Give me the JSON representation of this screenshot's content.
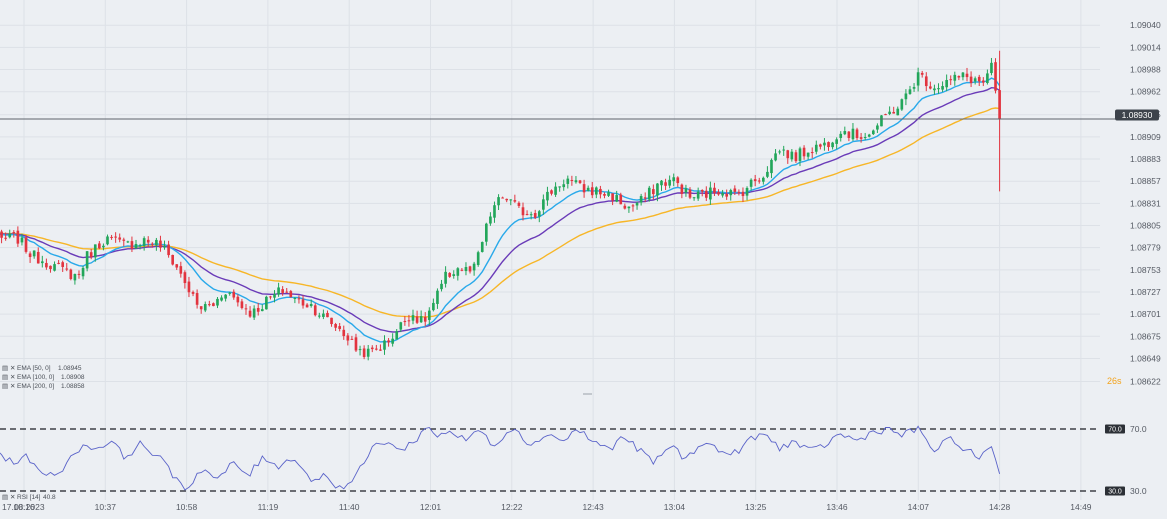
{
  "colors": {
    "background": "#eceff3",
    "grid": "#dde1e7",
    "bull": "#22a65a",
    "bear": "#e2343f",
    "ema50": "#29a9ea",
    "ema100": "#6a3bb8",
    "ema200": "#f7b627",
    "rsi": "#5a63c9",
    "price_line": "#5e636b",
    "price_badge": "#3d434b"
  },
  "chart_data": [
    {
      "type": "candlestick",
      "instrument_price": "1.08930",
      "y_ticks": [
        "1.09040",
        "1.09014",
        "1.08988",
        "1.08962",
        "1.08935",
        "1.08909",
        "1.08883",
        "1.08857",
        "1.08831",
        "1.08805",
        "1.08779",
        "1.08753",
        "1.08727",
        "1.08701",
        "1.08675",
        "1.08649",
        "1.08622"
      ],
      "ylim": [
        1.08612,
        1.09052
      ],
      "x_start_label": "17.08.2023",
      "x_ticks": [
        "10:16",
        "10:37",
        "10:58",
        "11:19",
        "11:40",
        "12:01",
        "12:22",
        "12:43",
        "13:04",
        "13:25",
        "13:46",
        "14:07",
        "14:28",
        "14:49"
      ],
      "countdown": "26s",
      "legend": [
        {
          "label": "EMA [50, 0]",
          "value": "1.08945",
          "color": "#29a9ea"
        },
        {
          "label": "EMA [100, 0]",
          "value": "1.08908",
          "color": "#6a3bb8"
        },
        {
          "label": "EMA [200, 0]",
          "value": "1.08858",
          "color": "#f7b627"
        }
      ],
      "close_anchors": [
        [
          "10:06",
          1.08795
        ],
        [
          "10:10",
          1.08788
        ],
        [
          "10:14",
          1.08792
        ],
        [
          "10:18",
          1.0877
        ],
        [
          "10:22",
          1.08762
        ],
        [
          "10:26",
          1.08752
        ],
        [
          "10:30",
          1.08745
        ],
        [
          "10:32",
          1.08768
        ],
        [
          "10:37",
          1.0879
        ],
        [
          "10:42",
          1.08782
        ],
        [
          "10:47",
          1.08788
        ],
        [
          "10:51",
          1.08783
        ],
        [
          "10:55",
          1.0876
        ],
        [
          "10:58",
          1.08735
        ],
        [
          "11:01",
          1.08708
        ],
        [
          "11:05",
          1.08712
        ],
        [
          "11:08",
          1.0873
        ],
        [
          "11:12",
          1.08712
        ],
        [
          "11:15",
          1.08702
        ],
        [
          "11:19",
          1.08718
        ],
        [
          "11:23",
          1.0873
        ],
        [
          "11:26",
          1.08718
        ],
        [
          "11:30",
          1.08712
        ],
        [
          "11:34",
          1.08695
        ],
        [
          "11:38",
          1.08682
        ],
        [
          "11:42",
          1.0866
        ],
        [
          "11:45",
          1.08655
        ],
        [
          "11:49",
          1.08665
        ],
        [
          "11:52",
          1.0868
        ],
        [
          "11:56",
          1.08703
        ],
        [
          "11:59",
          1.0869
        ],
        [
          "12:02",
          1.08715
        ],
        [
          "12:05",
          1.08745
        ],
        [
          "12:08",
          1.08755
        ],
        [
          "12:12",
          1.0875
        ],
        [
          "12:15",
          1.08795
        ],
        [
          "12:17",
          1.08825
        ],
        [
          "12:20",
          1.0884
        ],
        [
          "12:24",
          1.08822
        ],
        [
          "12:28",
          1.0882
        ],
        [
          "12:32",
          1.08845
        ],
        [
          "12:36",
          1.0886
        ],
        [
          "12:40",
          1.08848
        ],
        [
          "12:44",
          1.08845
        ],
        [
          "12:48",
          1.0884
        ],
        [
          "12:52",
          1.08825
        ],
        [
          "12:56",
          1.08835
        ],
        [
          "13:00",
          1.08855
        ],
        [
          "13:04",
          1.08858
        ],
        [
          "13:08",
          1.08838
        ],
        [
          "13:12",
          1.08842
        ],
        [
          "13:16",
          1.08848
        ],
        [
          "13:20",
          1.0884
        ],
        [
          "13:24",
          1.08855
        ],
        [
          "13:27",
          1.08865
        ],
        [
          "13:31",
          1.08895
        ],
        [
          "13:35",
          1.08885
        ],
        [
          "13:39",
          1.08895
        ],
        [
          "13:43",
          1.089
        ],
        [
          "13:47",
          1.08918
        ],
        [
          "13:51",
          1.0891
        ],
        [
          "13:55",
          1.08915
        ],
        [
          "13:59",
          1.08935
        ],
        [
          "14:03",
          1.0895
        ],
        [
          "14:07",
          1.08982
        ],
        [
          "14:11",
          1.08968
        ],
        [
          "14:15",
          1.08975
        ],
        [
          "14:19",
          1.0898
        ],
        [
          "14:24",
          1.08972
        ],
        [
          "14:26",
          1.0899
        ],
        [
          "14:28",
          1.0893
        ]
      ]
    },
    {
      "type": "line",
      "indicator": "RSI [14]",
      "legend_label": "RSI [14]",
      "legend_value": "40.8",
      "levels": [
        70,
        30
      ],
      "level_labels": [
        "70.0",
        "70.0",
        "30.0",
        "30.0"
      ],
      "ylim": [
        27,
        76
      ],
      "rsi_anchors": [
        [
          "10:06",
          52
        ],
        [
          "10:10",
          54
        ],
        [
          "10:13",
          48
        ],
        [
          "10:16",
          53
        ],
        [
          "10:19",
          45
        ],
        [
          "10:23",
          40
        ],
        [
          "10:27",
          47
        ],
        [
          "10:31",
          60
        ],
        [
          "10:35",
          57
        ],
        [
          "10:38",
          63
        ],
        [
          "10:42",
          52
        ],
        [
          "10:46",
          60
        ],
        [
          "10:50",
          54
        ],
        [
          "10:54",
          42
        ],
        [
          "10:58",
          31
        ],
        [
          "11:02",
          45
        ],
        [
          "11:06",
          37
        ],
        [
          "11:10",
          48
        ],
        [
          "11:14",
          40
        ],
        [
          "11:18",
          52
        ],
        [
          "11:22",
          46
        ],
        [
          "11:26",
          52
        ],
        [
          "11:30",
          37
        ],
        [
          "11:34",
          40
        ],
        [
          "11:38",
          31
        ],
        [
          "11:42",
          40
        ],
        [
          "11:46",
          58
        ],
        [
          "11:50",
          63
        ],
        [
          "11:53",
          55
        ],
        [
          "11:57",
          63
        ],
        [
          "12:00",
          71
        ],
        [
          "12:03",
          66
        ],
        [
          "12:06",
          69
        ],
        [
          "12:10",
          62
        ],
        [
          "12:13",
          70
        ],
        [
          "12:17",
          60
        ],
        [
          "12:20",
          66
        ],
        [
          "12:23",
          72
        ],
        [
          "12:27",
          58
        ],
        [
          "12:31",
          68
        ],
        [
          "12:35",
          62
        ],
        [
          "12:39",
          70
        ],
        [
          "12:43",
          62
        ],
        [
          "12:47",
          57
        ],
        [
          "12:51",
          65
        ],
        [
          "12:55",
          56
        ],
        [
          "12:59",
          48
        ],
        [
          "13:03",
          60
        ],
        [
          "13:07",
          50
        ],
        [
          "13:11",
          62
        ],
        [
          "13:15",
          57
        ],
        [
          "13:19",
          53
        ],
        [
          "13:23",
          62
        ],
        [
          "13:27",
          67
        ],
        [
          "13:31",
          58
        ],
        [
          "13:35",
          62
        ],
        [
          "13:39",
          55
        ],
        [
          "13:43",
          60
        ],
        [
          "13:47",
          67
        ],
        [
          "13:51",
          62
        ],
        [
          "13:55",
          68
        ],
        [
          "13:59",
          70
        ],
        [
          "14:03",
          66
        ],
        [
          "14:07",
          70
        ],
        [
          "14:11",
          56
        ],
        [
          "14:15",
          63
        ],
        [
          "14:19",
          58
        ],
        [
          "14:23",
          50
        ],
        [
          "14:26",
          60
        ],
        [
          "14:28",
          41
        ]
      ]
    }
  ]
}
